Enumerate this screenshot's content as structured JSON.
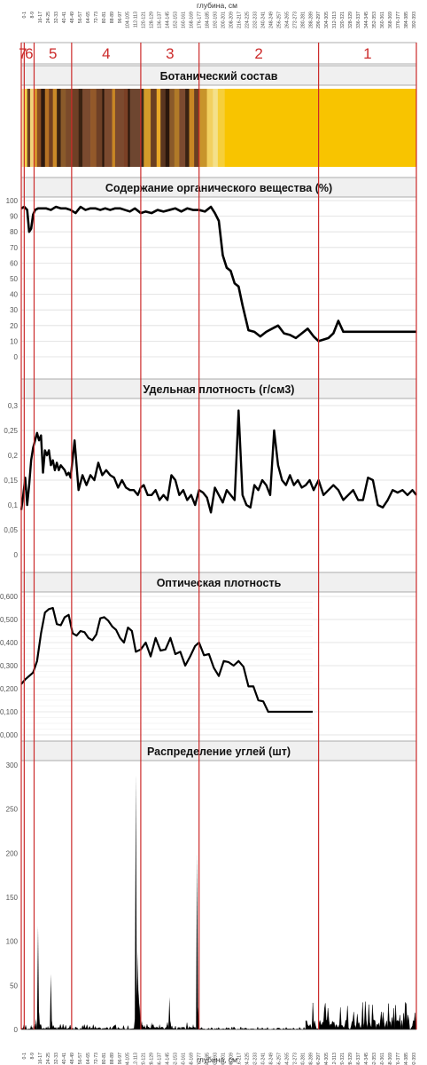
{
  "colors": {
    "boundary": "#cc2a2a",
    "series": "#000000",
    "grid": "#dedede",
    "title_bg": "#f0f0f0",
    "axis_text": "#555555"
  },
  "top_axis_label": "глубина, см",
  "bottom_axis_label": "глубина, см",
  "depth_labels": [
    "0-1",
    "8-9",
    "16-17",
    "24-25",
    "32-33",
    "40-41",
    "48-49",
    "56-57",
    "64-65",
    "72-73",
    "80-81",
    "88-89",
    "96-97",
    "104-105",
    "112-113",
    "120-121",
    "128-129",
    "136-137",
    "144-145",
    "152-153",
    "160-161",
    "168-169",
    "176-177",
    "184-185",
    "192-193",
    "200-201",
    "208-209",
    "216-217",
    "224-225",
    "232-233",
    "240-241",
    "248-249",
    "256-257",
    "264-265",
    "272-273",
    "280-281",
    "288-289",
    "296-297",
    "304-305",
    "312-313",
    "320-321",
    "328-329",
    "336-337",
    "344-345",
    "352-353",
    "360-361",
    "368-369",
    "376-377",
    "384-385",
    "392-393"
  ],
  "zones": [
    {
      "label": "7",
      "from": 0,
      "to": 3
    },
    {
      "label": "6",
      "from": 3,
      "to": 13
    },
    {
      "label": "5",
      "from": 13,
      "to": 51
    },
    {
      "label": "4",
      "from": 51,
      "to": 121
    },
    {
      "label": "3",
      "from": 121,
      "to": 180
    },
    {
      "label": "2",
      "from": 180,
      "to": 301
    },
    {
      "label": "1",
      "from": 301,
      "to": 400
    }
  ],
  "boundaries": [
    3,
    13,
    51,
    121,
    180,
    301
  ],
  "chart_data": [
    {
      "id": "botanical",
      "type": "heatmap",
      "title": "Ботанический состав",
      "x_domain": [
        0,
        400
      ],
      "bands": [
        {
          "from": 0,
          "to": 3,
          "color": "#f3e3a0"
        },
        {
          "from": 3,
          "to": 6,
          "color": "#f4d348"
        },
        {
          "from": 6,
          "to": 9,
          "color": "#6a3f22"
        },
        {
          "from": 9,
          "to": 13,
          "color": "#f0d27a"
        },
        {
          "from": 13,
          "to": 16,
          "color": "#d79a2a"
        },
        {
          "from": 16,
          "to": 20,
          "color": "#8a4d22"
        },
        {
          "from": 20,
          "to": 24,
          "color": "#2e1a10"
        },
        {
          "from": 24,
          "to": 28,
          "color": "#b67224"
        },
        {
          "from": 28,
          "to": 32,
          "color": "#734021"
        },
        {
          "from": 32,
          "to": 36,
          "color": "#cc8a28"
        },
        {
          "from": 36,
          "to": 40,
          "color": "#3a2212"
        },
        {
          "from": 40,
          "to": 45,
          "color": "#8a5a2a"
        },
        {
          "from": 45,
          "to": 51,
          "color": "#7a4a2a"
        },
        {
          "from": 51,
          "to": 58,
          "color": "#6e4026"
        },
        {
          "from": 58,
          "to": 62,
          "color": "#3a2212"
        },
        {
          "from": 62,
          "to": 70,
          "color": "#7b4a2f"
        },
        {
          "from": 70,
          "to": 76,
          "color": "#93592a"
        },
        {
          "from": 76,
          "to": 82,
          "color": "#6e4026"
        },
        {
          "from": 82,
          "to": 84,
          "color": "#2a170c"
        },
        {
          "from": 84,
          "to": 92,
          "color": "#7b4a2f"
        },
        {
          "from": 92,
          "to": 95,
          "color": "#c88624"
        },
        {
          "from": 95,
          "to": 104,
          "color": "#7b4a2f"
        },
        {
          "from": 104,
          "to": 108,
          "color": "#7a4026"
        },
        {
          "from": 108,
          "to": 110,
          "color": "#2a170c"
        },
        {
          "from": 110,
          "to": 121,
          "color": "#6e4630"
        },
        {
          "from": 121,
          "to": 124,
          "color": "#3a2a1a"
        },
        {
          "from": 124,
          "to": 131,
          "color": "#d49a2a"
        },
        {
          "from": 131,
          "to": 137,
          "color": "#6a3f22"
        },
        {
          "from": 137,
          "to": 141,
          "color": "#e8a828"
        },
        {
          "from": 141,
          "to": 146,
          "color": "#5a3620"
        },
        {
          "from": 146,
          "to": 150,
          "color": "#2a170c"
        },
        {
          "from": 150,
          "to": 155,
          "color": "#8a5a2a"
        },
        {
          "from": 155,
          "to": 160,
          "color": "#b07a28"
        },
        {
          "from": 160,
          "to": 166,
          "color": "#7b4a2f"
        },
        {
          "from": 166,
          "to": 170,
          "color": "#3a2212"
        },
        {
          "from": 170,
          "to": 175,
          "color": "#c88624"
        },
        {
          "from": 175,
          "to": 180,
          "color": "#6a3f22"
        },
        {
          "from": 180,
          "to": 188,
          "color": "#c8942a"
        },
        {
          "from": 188,
          "to": 194,
          "color": "#f2d060"
        },
        {
          "from": 194,
          "to": 199,
          "color": "#f4e08a"
        },
        {
          "from": 199,
          "to": 206,
          "color": "#f6cf3a"
        },
        {
          "from": 206,
          "to": 301,
          "color": "#f8c400"
        },
        {
          "from": 301,
          "to": 400,
          "color": "#f8c400"
        }
      ]
    },
    {
      "id": "organic",
      "type": "line",
      "title": "Содержание органического вещества (%)",
      "ylim": [
        0,
        100
      ],
      "yticks": [
        0,
        10,
        20,
        30,
        40,
        50,
        60,
        70,
        80,
        90,
        100
      ],
      "grid": true,
      "x": [
        0,
        3,
        6,
        8,
        10,
        12,
        14,
        17,
        20,
        25,
        30,
        35,
        40,
        45,
        50,
        55,
        60,
        65,
        70,
        75,
        80,
        85,
        90,
        95,
        100,
        105,
        110,
        115,
        121,
        126,
        132,
        138,
        144,
        150,
        156,
        162,
        168,
        174,
        180,
        186,
        192,
        196,
        200,
        204,
        208,
        212,
        216,
        220,
        224,
        230,
        236,
        242,
        248,
        254,
        260,
        266,
        272,
        278,
        284,
        290,
        296,
        301,
        306,
        311,
        316,
        321,
        326,
        331,
        336,
        341,
        346,
        351,
        356,
        361,
        366,
        371,
        376,
        381,
        386,
        391,
        396,
        400
      ],
      "y": [
        95,
        96,
        94,
        80,
        82,
        91,
        94,
        95,
        95,
        95,
        94,
        96,
        95,
        95,
        94,
        92,
        96,
        94,
        95,
        95,
        94,
        95,
        94,
        95,
        95,
        94,
        93,
        95,
        92,
        93,
        92,
        94,
        93,
        94,
        95,
        93,
        95,
        94,
        94,
        93,
        96,
        92,
        87,
        65,
        57,
        55,
        47,
        45,
        33,
        17,
        16,
        13,
        16,
        18,
        20,
        15,
        14,
        12,
        15,
        18,
        13,
        10,
        11,
        12,
        15,
        23,
        16,
        16,
        16,
        16,
        16,
        16,
        16,
        16,
        16,
        16,
        16,
        16,
        16,
        16,
        16,
        16
      ]
    },
    {
      "id": "density",
      "type": "line",
      "title": "Удельная плотность (г/см3)",
      "ylim": [
        0,
        0.3
      ],
      "yticks": [
        0,
        0.05,
        0.1,
        0.15,
        0.2,
        0.25,
        0.3
      ],
      "ytick_labels": [
        "0",
        "0,05",
        "0,1",
        "0,15",
        "0,2",
        "0,25",
        "0,3"
      ],
      "grid": true,
      "x": [
        0,
        2,
        4,
        6,
        8,
        10,
        12,
        14,
        16,
        18,
        20,
        22,
        24,
        26,
        28,
        30,
        32,
        34,
        36,
        38,
        40,
        42,
        44,
        46,
        48,
        50,
        54,
        58,
        62,
        66,
        70,
        74,
        78,
        82,
        86,
        90,
        94,
        98,
        102,
        106,
        110,
        114,
        118,
        121,
        124,
        128,
        132,
        136,
        140,
        144,
        148,
        152,
        156,
        160,
        164,
        168,
        172,
        176,
        180,
        184,
        188,
        192,
        196,
        200,
        204,
        208,
        212,
        216,
        220,
        224,
        228,
        232,
        236,
        240,
        244,
        248,
        252,
        256,
        260,
        264,
        268,
        272,
        276,
        280,
        284,
        288,
        292,
        296,
        301,
        306,
        311,
        316,
        321,
        326,
        331,
        336,
        341,
        346,
        351,
        356,
        361,
        366,
        371,
        376,
        381,
        386,
        391,
        396,
        400
      ],
      "y": [
        0.09,
        0.12,
        0.155,
        0.1,
        0.14,
        0.19,
        0.215,
        0.23,
        0.245,
        0.23,
        0.24,
        0.165,
        0.21,
        0.2,
        0.21,
        0.18,
        0.19,
        0.17,
        0.185,
        0.17,
        0.18,
        0.175,
        0.17,
        0.16,
        0.165,
        0.155,
        0.23,
        0.13,
        0.16,
        0.14,
        0.16,
        0.15,
        0.185,
        0.16,
        0.17,
        0.16,
        0.155,
        0.135,
        0.15,
        0.135,
        0.13,
        0.13,
        0.12,
        0.135,
        0.14,
        0.12,
        0.12,
        0.13,
        0.11,
        0.12,
        0.11,
        0.16,
        0.15,
        0.12,
        0.13,
        0.11,
        0.12,
        0.1,
        0.13,
        0.125,
        0.115,
        0.085,
        0.135,
        0.12,
        0.105,
        0.13,
        0.12,
        0.11,
        0.29,
        0.12,
        0.1,
        0.095,
        0.14,
        0.13,
        0.15,
        0.14,
        0.12,
        0.25,
        0.18,
        0.15,
        0.14,
        0.16,
        0.14,
        0.15,
        0.135,
        0.14,
        0.15,
        0.13,
        0.15,
        0.12,
        0.13,
        0.14,
        0.13,
        0.11,
        0.12,
        0.13,
        0.11,
        0.11,
        0.155,
        0.15,
        0.1,
        0.095,
        0.11,
        0.13,
        0.125,
        0.13,
        0.12,
        0.13,
        0.12
      ]
    },
    {
      "id": "optical",
      "type": "line",
      "title": "Оптическая плотность",
      "ylim": [
        0,
        0.6
      ],
      "yticks": [
        0,
        0.1,
        0.2,
        0.3,
        0.4,
        0.5,
        0.6
      ],
      "ytick_labels": [
        "0,000",
        "0,100",
        "0,200",
        "0,300",
        "0,400",
        "0,500",
        "0,600"
      ],
      "grid": true,
      "x": [
        0,
        4,
        8,
        12,
        16,
        20,
        24,
        28,
        32,
        36,
        40,
        44,
        48,
        52,
        56,
        60,
        64,
        68,
        72,
        76,
        80,
        84,
        88,
        92,
        96,
        100,
        104,
        108,
        112,
        116,
        121,
        126,
        131,
        136,
        141,
        146,
        151,
        156,
        161,
        166,
        171,
        176,
        180,
        185,
        190,
        195,
        200,
        205,
        210,
        215,
        220,
        225,
        230,
        235,
        240,
        245,
        250,
        255,
        260,
        265,
        270,
        275,
        280,
        285,
        290,
        295
      ],
      "y": [
        0.22,
        0.24,
        0.255,
        0.27,
        0.32,
        0.44,
        0.53,
        0.545,
        0.55,
        0.48,
        0.475,
        0.51,
        0.52,
        0.44,
        0.43,
        0.45,
        0.445,
        0.42,
        0.41,
        0.435,
        0.505,
        0.51,
        0.495,
        0.47,
        0.455,
        0.42,
        0.4,
        0.465,
        0.45,
        0.36,
        0.37,
        0.4,
        0.34,
        0.42,
        0.365,
        0.37,
        0.42,
        0.35,
        0.36,
        0.3,
        0.34,
        0.385,
        0.4,
        0.345,
        0.35,
        0.29,
        0.255,
        0.32,
        0.315,
        0.3,
        0.32,
        0.295,
        0.21,
        0.21,
        0.15,
        0.145,
        0.1,
        0.1,
        0.1,
        0.1,
        0.1,
        0.1,
        0.1,
        0.1,
        0.1,
        0.1
      ]
    },
    {
      "id": "charcoal",
      "type": "bar",
      "title": "Распределение углей (шт)",
      "ylim": [
        0,
        300
      ],
      "yticks": [
        0,
        50,
        100,
        150,
        200,
        250,
        300
      ],
      "grid": false,
      "spikes": [
        {
          "x": 10,
          "y": 5
        },
        {
          "x": 13,
          "y": 8
        },
        {
          "x": 15,
          "y": 12
        },
        {
          "x": 17,
          "y": 117
        },
        {
          "x": 18,
          "y": 20
        },
        {
          "x": 20,
          "y": 6
        },
        {
          "x": 27,
          "y": 4
        },
        {
          "x": 30,
          "y": 63
        },
        {
          "x": 31,
          "y": 10
        },
        {
          "x": 35,
          "y": 3
        },
        {
          "x": 45,
          "y": 3
        },
        {
          "x": 60,
          "y": 2
        },
        {
          "x": 75,
          "y": 4
        },
        {
          "x": 90,
          "y": 3
        },
        {
          "x": 115,
          "y": 12
        },
        {
          "x": 116,
          "y": 290
        },
        {
          "x": 117,
          "y": 60
        },
        {
          "x": 118,
          "y": 88
        },
        {
          "x": 119,
          "y": 45
        },
        {
          "x": 120,
          "y": 30
        },
        {
          "x": 122,
          "y": 10
        },
        {
          "x": 125,
          "y": 5
        },
        {
          "x": 132,
          "y": 8
        },
        {
          "x": 140,
          "y": 6
        },
        {
          "x": 150,
          "y": 37
        },
        {
          "x": 151,
          "y": 10
        },
        {
          "x": 170,
          "y": 4
        },
        {
          "x": 174,
          "y": 6
        },
        {
          "x": 176,
          "y": 3
        },
        {
          "x": 178,
          "y": 200
        },
        {
          "x": 179,
          "y": 25
        }
      ],
      "noise_segments": [
        {
          "from": 0,
          "to": 110,
          "max": 6
        },
        {
          "from": 121,
          "to": 176,
          "max": 8
        },
        {
          "from": 180,
          "to": 288,
          "max": 3
        },
        {
          "from": 288,
          "to": 400,
          "max": 32
        }
      ]
    }
  ]
}
